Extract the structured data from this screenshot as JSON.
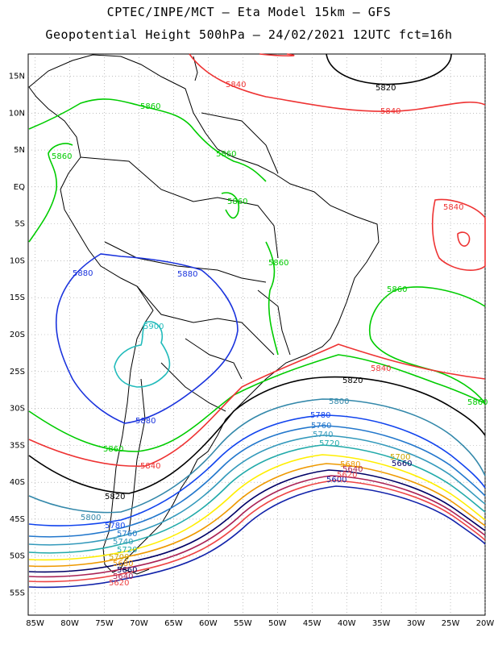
{
  "header": {
    "line1": "CPTEC/INPE/MCT –  Eta Model 15km – GFS",
    "line2": "Geopotential Height 500hPa – 24/02/2021 12UTC fct=16h"
  },
  "map": {
    "lat_ticks": [
      "15N",
      "10N",
      "5N",
      "EQ",
      "5S",
      "10S",
      "15S",
      "20S",
      "25S",
      "30S",
      "35S",
      "40S",
      "45S",
      "50S",
      "55S"
    ],
    "lon_ticks": [
      "85W",
      "80W",
      "75W",
      "70W",
      "65W",
      "60W",
      "55W",
      "50W",
      "45W",
      "40W",
      "35W",
      "30W",
      "25W",
      "20W"
    ],
    "lat_range": [
      18,
      -58
    ],
    "lon_range": [
      -86,
      -20
    ],
    "grid": true,
    "contour_levels": [
      {
        "value": "5840",
        "color": "#ee3333"
      },
      {
        "value": "5820",
        "color": "#000000"
      },
      {
        "value": "5860",
        "color": "#00cc00"
      },
      {
        "value": "5880",
        "color": "#1a33dd"
      },
      {
        "value": "5900",
        "color": "#22bbbb"
      },
      {
        "value": "5800",
        "color": "#3388aa"
      },
      {
        "value": "5780",
        "color": "#1144ee"
      },
      {
        "value": "5760",
        "color": "#2277cc"
      },
      {
        "value": "5740",
        "color": "#3399bb"
      },
      {
        "value": "5720",
        "color": "#22aaaa"
      },
      {
        "value": "5700",
        "color": "#ffee00"
      },
      {
        "value": "5680",
        "color": "#ee9900"
      },
      {
        "value": "5660",
        "color": "#000066"
      },
      {
        "value": "5640",
        "color": "#aa2255"
      },
      {
        "value": "5620",
        "color": "#ee4444"
      },
      {
        "value": "5600",
        "color": "#1122aa"
      }
    ],
    "labels": {
      "l5840_n": "5840",
      "l5820_n": "5820",
      "l5840_ne": "5840",
      "l5860_a": "5860",
      "l5860_b": "5860",
      "l5860_c": "5860",
      "l5860_d": "5860",
      "l5860_e": "5860",
      "l5840_e": "5840",
      "l5860_f": "5860",
      "l5880_a": "5880",
      "l5880_b": "5880",
      "l5900": "5900",
      "l5840_c": "5840",
      "l5820_c": "5820",
      "l5860_g": "5860",
      "l5880_c": "5880",
      "l5860_h": "5860",
      "l5840_w": "5840",
      "l5820_w": "5820",
      "l5800_a": "5800",
      "l5780_a": "5780",
      "l5760_a": "5760",
      "l5740_a": "5740",
      "l5720_a": "5720",
      "l5700_a": "5700",
      "l5680_a": "5680",
      "l5660_a": "5660",
      "l5640_a": "5640",
      "l5620_a": "5620",
      "l5600_a": "5600",
      "l5800_b": "5800",
      "l5780_b": "5780",
      "l5760_b": "5760",
      "l5740_b": "5740",
      "l5720_b": "5720",
      "l5680_b": "5680",
      "l5660_b": "5660",
      "l5640_b": "5640",
      "l5620_b": "5620"
    }
  }
}
